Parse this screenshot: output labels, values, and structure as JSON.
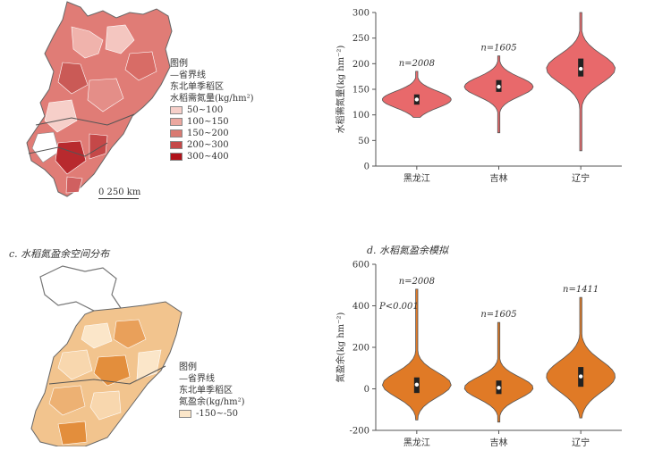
{
  "panel_a": {
    "legend_title": "图例",
    "boundary_label": "—省界线",
    "region_label": "东北单季稻区",
    "var_label": "水稻需氮量(kg/hm²)",
    "classes": [
      {
        "label": "50~100",
        "color": "#f6cfc9"
      },
      {
        "label": "100~150",
        "color": "#eba79f"
      },
      {
        "label": "150~200",
        "color": "#d97a72"
      },
      {
        "label": "200~300",
        "color": "#c54848"
      },
      {
        "label": "300~400",
        "color": "#b0121a"
      }
    ],
    "scale_label": "0  250 km"
  },
  "panel_c": {
    "caption": "c. 水稻氮盈余空间分布",
    "legend_title": "图例",
    "boundary_label": "—省界线",
    "region_label": "东北单季稻区",
    "var_label": "氮盈余(kg/hm²)",
    "classes": [
      {
        "label": "-150~-50",
        "color": "#fbe6c9"
      }
    ]
  },
  "colors": {
    "red_violin": "#e8696b",
    "orange_violin": "#e07a26"
  },
  "chart_data": [
    {
      "type": "violin",
      "ylabel": "水稻需氮量(kg hm⁻²)",
      "ylim": [
        0,
        300
      ],
      "yticks": [
        "0",
        "50",
        "100",
        "150",
        "200",
        "250",
        "300"
      ],
      "categories": [
        "黑龙江",
        "吉林",
        "辽宁"
      ],
      "annotations": [
        "n=2008",
        "n=1605",
        ""
      ],
      "medians": [
        130,
        155,
        190
      ],
      "q1": [
        120,
        145,
        175
      ],
      "q3": [
        140,
        168,
        210
      ],
      "mins": [
        95,
        65,
        30
      ],
      "maxs": [
        185,
        215,
        300
      ]
    },
    {
      "type": "violin",
      "title": "d. 水稻氮盈余模拟",
      "ylabel": "氮盈余(kg hm⁻²)",
      "ylim": [
        -200,
        600
      ],
      "yticks": [
        "-200",
        "0",
        "200",
        "400",
        "600"
      ],
      "categories": [
        "黑龙江",
        "吉林",
        "辽宁"
      ],
      "annotations": [
        "n=2008",
        "n=1605",
        "n=1411"
      ],
      "extra_annotation": "P<0.001",
      "medians": [
        20,
        5,
        60
      ],
      "q1": [
        -20,
        -25,
        10
      ],
      "q3": [
        55,
        40,
        105
      ],
      "mins": [
        -150,
        -160,
        -140
      ],
      "maxs": [
        480,
        320,
        440
      ]
    }
  ]
}
